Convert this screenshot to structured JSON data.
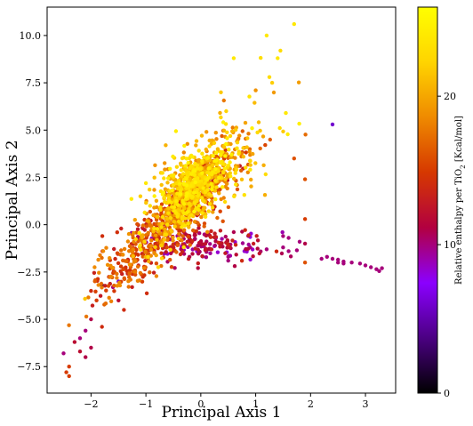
{
  "chart_data": {
    "type": "scatter",
    "xlabel": "Principal Axis 1",
    "ylabel": "Principal Axis 2",
    "xlim": [
      -2.8,
      3.55
    ],
    "ylim": [
      -8.9,
      11.5
    ],
    "xticks": [
      -2,
      -1,
      0,
      1,
      2,
      3
    ],
    "yticks": [
      -7.5,
      -5.0,
      -2.5,
      0.0,
      2.5,
      5.0,
      7.5,
      10.0
    ],
    "grid": false,
    "colorbar": {
      "label_main": "Relative enthalpy per TiO",
      "label_sub": "2",
      "label_unit": " [Kcal/mol]",
      "range": [
        0,
        26
      ],
      "ticks": [
        0,
        10,
        20
      ],
      "colormap": "gnuplot",
      "stops": [
        "#000000",
        "#4b0082",
        "#8b00ff",
        "#b20040",
        "#d63800",
        "#ef8a00",
        "#ffd400",
        "#ffff00"
      ]
    },
    "clusters": [
      {
        "center": [
          -0.3,
          1.0
        ],
        "spread": [
          0.45,
          1.3
        ],
        "corr": 0.82,
        "count": 700,
        "value_range": [
          12,
          24
        ]
      },
      {
        "center": [
          -0.1,
          2.5
        ],
        "spread": [
          0.35,
          0.9
        ],
        "corr": 0.6,
        "count": 400,
        "value_range": [
          18,
          25
        ]
      },
      {
        "center": [
          -1.2,
          -1.8
        ],
        "spread": [
          0.4,
          1.2
        ],
        "corr": 0.7,
        "count": 220,
        "value_range": [
          13,
          19
        ]
      },
      {
        "center": [
          0.6,
          3.5
        ],
        "spread": [
          0.5,
          1.8
        ],
        "corr": 0.5,
        "count": 120,
        "value_range": [
          16,
          25
        ]
      },
      {
        "center": [
          0.0,
          -1.0
        ],
        "spread": [
          0.6,
          0.5
        ],
        "corr": -0.2,
        "count": 180,
        "value_range": [
          8,
          14
        ]
      }
    ],
    "points": [
      {
        "x": 1.7,
        "y": 10.6,
        "v": 24
      },
      {
        "x": 1.2,
        "y": 10.0,
        "v": 24
      },
      {
        "x": 1.45,
        "y": 9.2,
        "v": 23
      },
      {
        "x": 1.4,
        "y": 8.8,
        "v": 24
      },
      {
        "x": 0.6,
        "y": 8.8,
        "v": 24
      },
      {
        "x": 1.25,
        "y": 7.8,
        "v": 23
      },
      {
        "x": 1.3,
        "y": 7.5,
        "v": 22
      },
      {
        "x": 1.0,
        "y": 7.1,
        "v": 19
      },
      {
        "x": 1.55,
        "y": 5.9,
        "v": 24
      },
      {
        "x": 1.7,
        "y": 3.5,
        "v": 16
      },
      {
        "x": 1.9,
        "y": 2.4,
        "v": 16
      },
      {
        "x": 1.9,
        "y": 0.3,
        "v": 15
      },
      {
        "x": 2.4,
        "y": 5.3,
        "v": 6
      },
      {
        "x": -1.1,
        "y": 1.5,
        "v": 22
      },
      {
        "x": -1.0,
        "y": 2.2,
        "v": 24
      },
      {
        "x": 0.5,
        "y": -1.7,
        "v": 10
      },
      {
        "x": 0.5,
        "y": -1.9,
        "v": 10
      },
      {
        "x": 0.9,
        "y": -1.2,
        "v": 10
      },
      {
        "x": 1.2,
        "y": -1.3,
        "v": 10
      },
      {
        "x": 1.5,
        "y": -0.6,
        "v": 10
      },
      {
        "x": 1.5,
        "y": -1.2,
        "v": 10
      },
      {
        "x": 1.6,
        "y": -0.7,
        "v": 10
      },
      {
        "x": 1.8,
        "y": -0.9,
        "v": 10
      },
      {
        "x": 1.6,
        "y": -1.4,
        "v": 10
      },
      {
        "x": 1.75,
        "y": -1.35,
        "v": 10
      },
      {
        "x": 1.9,
        "y": -1.0,
        "v": 11
      },
      {
        "x": 1.9,
        "y": -2.0,
        "v": 16
      },
      {
        "x": 2.2,
        "y": -1.8,
        "v": 10
      },
      {
        "x": 2.3,
        "y": -1.7,
        "v": 10
      },
      {
        "x": 2.4,
        "y": -1.8,
        "v": 10
      },
      {
        "x": 2.5,
        "y": -1.85,
        "v": 10
      },
      {
        "x": 2.6,
        "y": -1.95,
        "v": 10
      },
      {
        "x": 2.75,
        "y": -2.0,
        "v": 10
      },
      {
        "x": 2.9,
        "y": -2.05,
        "v": 10
      },
      {
        "x": 3.0,
        "y": -2.15,
        "v": 10
      },
      {
        "x": 3.1,
        "y": -2.25,
        "v": 10
      },
      {
        "x": 3.2,
        "y": -2.35,
        "v": 10
      },
      {
        "x": 3.25,
        "y": -2.45,
        "v": 10
      },
      {
        "x": 3.3,
        "y": -2.3,
        "v": 10
      },
      {
        "x": 2.6,
        "y": -2.05,
        "v": 10
      },
      {
        "x": 2.5,
        "y": -2.0,
        "v": 10
      },
      {
        "x": -1.5,
        "y": -3.0,
        "v": 6
      },
      {
        "x": -1.6,
        "y": -3.3,
        "v": 10
      },
      {
        "x": -1.8,
        "y": -3.2,
        "v": 2
      },
      {
        "x": -2.0,
        "y": -3.5,
        "v": 14
      },
      {
        "x": -1.9,
        "y": -4.0,
        "v": 15
      },
      {
        "x": -1.4,
        "y": -4.5,
        "v": 14
      },
      {
        "x": -1.5,
        "y": -4.0,
        "v": 12
      },
      {
        "x": -2.0,
        "y": -5.0,
        "v": 11
      },
      {
        "x": -2.1,
        "y": -5.6,
        "v": 10
      },
      {
        "x": -2.2,
        "y": -6.0,
        "v": 10
      },
      {
        "x": -2.3,
        "y": -6.2,
        "v": 12
      },
      {
        "x": -2.0,
        "y": -6.5,
        "v": 11
      },
      {
        "x": -2.2,
        "y": -6.7,
        "v": 12
      },
      {
        "x": -2.1,
        "y": -7.0,
        "v": 11
      },
      {
        "x": -2.5,
        "y": -6.8,
        "v": 10
      },
      {
        "x": -2.4,
        "y": -7.5,
        "v": 15
      },
      {
        "x": -2.45,
        "y": -7.8,
        "v": 15
      },
      {
        "x": -2.4,
        "y": -8.0,
        "v": 15
      },
      {
        "x": -1.8,
        "y": -5.4,
        "v": 14
      }
    ]
  }
}
